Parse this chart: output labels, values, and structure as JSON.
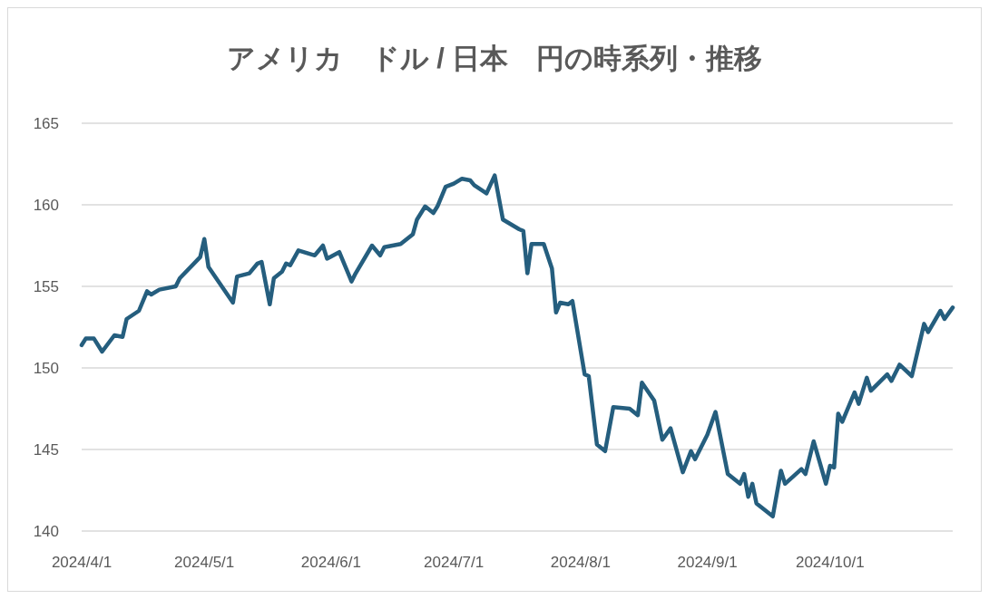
{
  "chart_data": {
    "type": "line",
    "title": "アメリカ　ドル / 日本　円の時系列・推移",
    "xlim": [
      "2024-04-01",
      "2024-10-31"
    ],
    "xticks": [
      {
        "value": "2024-04-01",
        "label": "2024/4/1"
      },
      {
        "value": "2024-05-01",
        "label": "2024/5/1"
      },
      {
        "value": "2024-06-01",
        "label": "2024/6/1"
      },
      {
        "value": "2024-07-01",
        "label": "2024/7/1"
      },
      {
        "value": "2024-08-01",
        "label": "2024/8/1"
      },
      {
        "value": "2024-09-01",
        "label": "2024/9/1"
      },
      {
        "value": "2024-10-01",
        "label": "2024/10/1"
      }
    ],
    "ylim": [
      140,
      165
    ],
    "yticks": [
      140,
      145,
      150,
      155,
      160,
      165
    ],
    "grid": "y",
    "marker": "none",
    "line_style": "solid",
    "series": [
      {
        "color": "#255e7e",
        "x": [
          "2024-04-01",
          "2024-04-02",
          "2024-04-04",
          "2024-04-06",
          "2024-04-09",
          "2024-04-11",
          "2024-04-12",
          "2024-04-15",
          "2024-04-17",
          "2024-04-18",
          "2024-04-20",
          "2024-04-24",
          "2024-04-25",
          "2024-04-30",
          "2024-05-01",
          "2024-05-02",
          "2024-05-08",
          "2024-05-09",
          "2024-05-12",
          "2024-05-14",
          "2024-05-15",
          "2024-05-17",
          "2024-05-18",
          "2024-05-20",
          "2024-05-21",
          "2024-05-22",
          "2024-05-24",
          "2024-05-28",
          "2024-05-30",
          "2024-05-31",
          "2024-06-03",
          "2024-06-06",
          "2024-06-07",
          "2024-06-11",
          "2024-06-13",
          "2024-06-14",
          "2024-06-18",
          "2024-06-21",
          "2024-06-22",
          "2024-06-24",
          "2024-06-26",
          "2024-06-27",
          "2024-06-29",
          "2024-07-01",
          "2024-07-03",
          "2024-07-05",
          "2024-07-06",
          "2024-07-09",
          "2024-07-11",
          "2024-07-13",
          "2024-07-17",
          "2024-07-18",
          "2024-07-19",
          "2024-07-20",
          "2024-07-23",
          "2024-07-25",
          "2024-07-26",
          "2024-07-27",
          "2024-07-29",
          "2024-07-30",
          "2024-07-31",
          "2024-08-02",
          "2024-08-03",
          "2024-08-05",
          "2024-08-07",
          "2024-08-09",
          "2024-08-13",
          "2024-08-15",
          "2024-08-16",
          "2024-08-19",
          "2024-08-21",
          "2024-08-23",
          "2024-08-26",
          "2024-08-28",
          "2024-08-29",
          "2024-09-01",
          "2024-09-03",
          "2024-09-06",
          "2024-09-09",
          "2024-09-10",
          "2024-09-11",
          "2024-09-12",
          "2024-09-13",
          "2024-09-17",
          "2024-09-19",
          "2024-09-20",
          "2024-09-24",
          "2024-09-25",
          "2024-09-27",
          "2024-09-30",
          "2024-10-01",
          "2024-10-02",
          "2024-10-03",
          "2024-10-04",
          "2024-10-07",
          "2024-10-08",
          "2024-10-10",
          "2024-10-11",
          "2024-10-15",
          "2024-10-16",
          "2024-10-18",
          "2024-10-21",
          "2024-10-24",
          "2024-10-25",
          "2024-10-28",
          "2024-10-29",
          "2024-10-31"
        ],
        "values": [
          151.4,
          151.8,
          151.8,
          151.0,
          152.0,
          151.9,
          153.0,
          153.5,
          154.7,
          154.5,
          154.8,
          155.0,
          155.5,
          156.8,
          157.9,
          156.2,
          154.0,
          155.6,
          155.8,
          156.4,
          156.5,
          153.9,
          155.5,
          155.9,
          156.4,
          156.3,
          157.2,
          156.9,
          157.5,
          156.7,
          157.1,
          155.3,
          155.8,
          157.5,
          156.9,
          157.4,
          157.6,
          158.2,
          159.1,
          159.9,
          159.5,
          159.9,
          161.1,
          161.3,
          161.6,
          161.5,
          161.2,
          160.7,
          161.8,
          159.1,
          158.5,
          158.4,
          155.8,
          157.6,
          157.6,
          156.1,
          153.4,
          154.0,
          153.9,
          154.1,
          152.6,
          149.6,
          149.5,
          145.3,
          144.9,
          147.6,
          147.5,
          147.1,
          149.1,
          148.0,
          145.6,
          146.3,
          143.6,
          144.9,
          144.4,
          145.9,
          147.3,
          143.5,
          142.9,
          143.5,
          142.1,
          142.9,
          141.7,
          140.9,
          143.7,
          142.9,
          143.8,
          143.5,
          145.5,
          142.9,
          144.0,
          143.9,
          147.2,
          146.7,
          148.5,
          147.8,
          149.4,
          148.6,
          149.6,
          149.2,
          150.2,
          149.5,
          152.7,
          152.2,
          153.5,
          153.0,
          153.7
        ]
      }
    ]
  }
}
